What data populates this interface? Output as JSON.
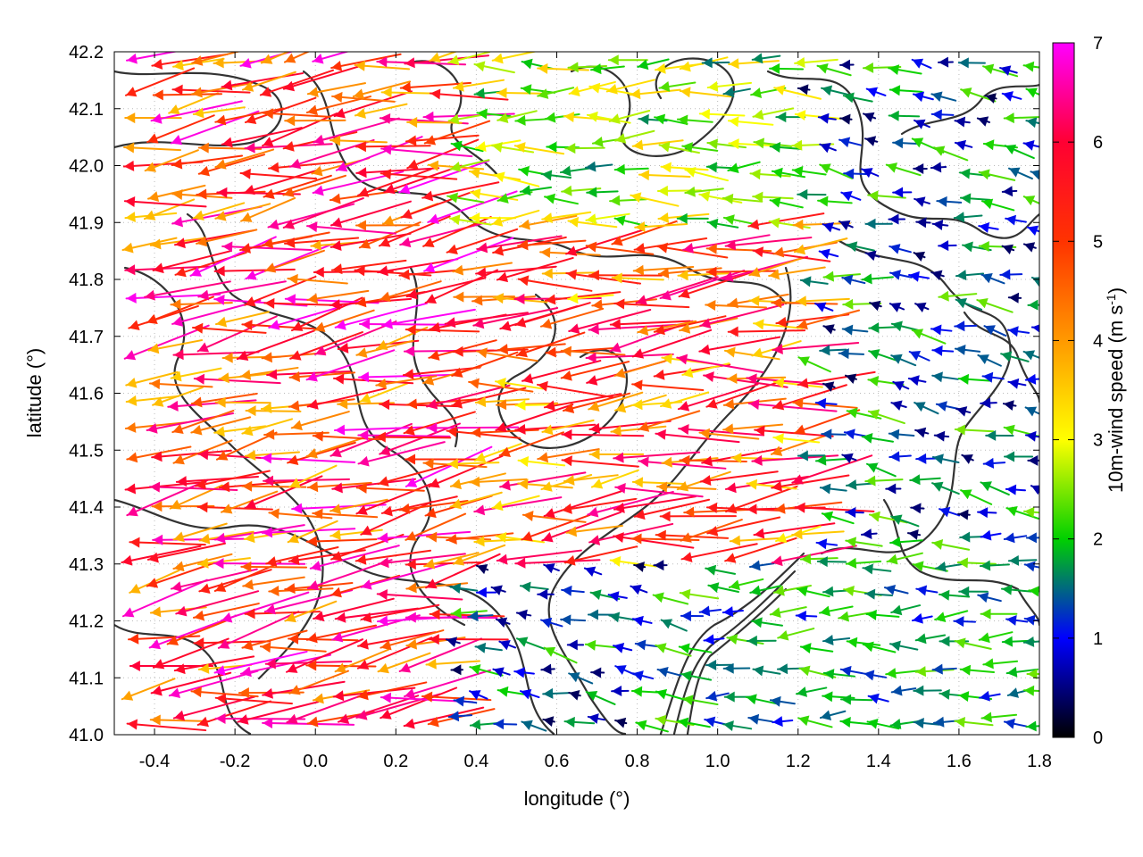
{
  "chart_data": {
    "type": "vector-field",
    "xlabel": "longitude (°)",
    "ylabel": "latitude (°)",
    "xlim": [
      -0.5,
      1.8
    ],
    "ylim": [
      41.0,
      42.2
    ],
    "x_ticks": [
      "-0.4",
      "-0.2",
      "0.0",
      "0.2",
      "0.4",
      "0.6",
      "0.8",
      "1.0",
      "1.2",
      "1.4",
      "1.6",
      "1.8"
    ],
    "y_ticks": [
      "41.0",
      "41.1",
      "41.2",
      "41.3",
      "41.4",
      "41.5",
      "41.6",
      "41.7",
      "41.8",
      "41.9",
      "42.0",
      "42.1",
      "42.2"
    ],
    "grid": true,
    "colorbar": {
      "label": "10m-wind speed (m s-1)",
      "label_main": "10m-wind speed (m s",
      "label_sup": "-1",
      "label_end": ")",
      "range": [
        0,
        7
      ],
      "ticks": [
        "0",
        "1",
        "2",
        "3",
        "4",
        "5",
        "6",
        "7"
      ],
      "colors": [
        "#000000",
        "#0000ff",
        "#00d000",
        "#ffff00",
        "#ff8c00",
        "#ff0000",
        "#ff00ff"
      ]
    },
    "wind_regions": [
      {
        "lon": [
          -0.5,
          0.3
        ],
        "lat": [
          41.0,
          42.2
        ],
        "speed": [
          3.5,
          7.0
        ],
        "direction_deg_from": 80
      },
      {
        "lon": [
          0.3,
          1.2
        ],
        "lat": [
          41.3,
          41.9
        ],
        "speed": [
          3.0,
          6.5
        ],
        "direction_deg_from": 85
      },
      {
        "lon": [
          0.3,
          1.2
        ],
        "lat": [
          41.9,
          42.2
        ],
        "speed": [
          1.5,
          3.5
        ],
        "direction_deg_from": 90
      },
      {
        "lon": [
          0.9,
          1.8
        ],
        "lat": [
          41.0,
          41.35
        ],
        "speed": [
          1.0,
          2.5
        ],
        "direction_deg_from": 90
      },
      {
        "lon": [
          1.2,
          1.8
        ],
        "lat": [
          41.35,
          42.2
        ],
        "speed": [
          0.3,
          2.5
        ],
        "direction_deg_from": 100
      }
    ],
    "contours": "terrain elevation contour lines (black)"
  }
}
